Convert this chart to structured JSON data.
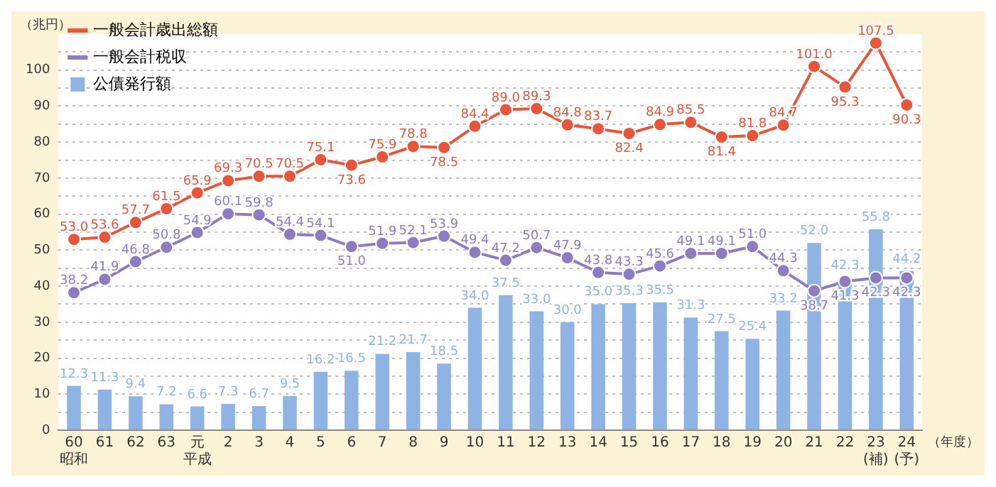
{
  "chart_data": {
    "type": "bar",
    "categories": [
      "60\n昭和",
      "61",
      "62",
      "63",
      "元平成",
      "2",
      "3",
      "4",
      "5",
      "6",
      "7",
      "8",
      "9",
      "10",
      "11",
      "12",
      "13",
      "14",
      "15",
      "16",
      "17",
      "18",
      "19",
      "20",
      "21",
      "22",
      "23\n(補)",
      "24\n(予)"
    ],
    "series": [
      {
        "name": "一般会計歳出総額",
        "type": "line",
        "color": "#e8553a",
        "values": [
          53.0,
          53.6,
          57.7,
          61.5,
          65.9,
          69.3,
          70.5,
          70.5,
          75.1,
          73.6,
          75.9,
          78.8,
          78.5,
          84.4,
          89.0,
          89.3,
          84.8,
          83.7,
          82.4,
          84.9,
          85.5,
          81.4,
          81.8,
          84.7,
          101.0,
          95.3,
          107.5,
          90.3
        ],
        "value_labels": [
          "53.0",
          "53.6",
          "57.7",
          "61.5",
          "65.9",
          "69.3",
          "70.5",
          "70.5",
          "75.1",
          "73.6",
          "75.9",
          "78.8",
          "78.5",
          "84.4",
          "89.0",
          "89.3",
          "84.8",
          "83.7",
          "82.4",
          "84.9",
          "85.5",
          "81.4",
          "81.8",
          "84.7",
          "101.0",
          "95.3",
          "107.5",
          "90.3"
        ]
      },
      {
        "name": "一般会計税収",
        "type": "line",
        "color": "#8e7cc3",
        "values": [
          38.2,
          41.9,
          46.8,
          50.8,
          54.9,
          60.1,
          59.8,
          54.4,
          54.1,
          51.0,
          51.9,
          52.1,
          53.9,
          49.4,
          47.2,
          50.7,
          47.9,
          43.8,
          43.3,
          45.6,
          49.1,
          49.1,
          51.0,
          44.3,
          38.7,
          41.3,
          42.3,
          42.3
        ],
        "value_labels": [
          "38.2",
          "41.9",
          "46.8",
          "50.8",
          "54.9",
          "60.1",
          "59.8",
          "54.4",
          "54.1",
          "51.0",
          "51.9",
          "52.1",
          "53.9",
          "49.4",
          "47.2",
          "50.7",
          "47.9",
          "43.8",
          "43.3",
          "45.6",
          "49.1",
          "49.1",
          "51.0",
          "44.3",
          "38.7",
          "41.3",
          "42.3",
          "42.3"
        ]
      },
      {
        "name": "公債発行額",
        "color": "#8fb4e3",
        "values": [
          12.3,
          11.3,
          9.4,
          7.2,
          6.6,
          7.3,
          6.7,
          9.5,
          16.2,
          16.5,
          21.2,
          21.7,
          18.5,
          34.0,
          37.5,
          33.0,
          30.0,
          35.0,
          35.3,
          35.5,
          31.3,
          27.5,
          25.4,
          33.2,
          52.0,
          42.3,
          55.8,
          44.2
        ],
        "value_labels": [
          "12.3",
          "11.3",
          "9.4",
          "7.2",
          "6.6",
          "7.3",
          "6.7",
          "9.5",
          "16.2",
          "16.5",
          "21.2",
          "21.7",
          "18.5",
          "34.0",
          "37.5",
          "33.0",
          "30.0",
          "35.0",
          "35.3",
          "35.5",
          "31.3",
          "27.5",
          "25.4",
          "33.2",
          "52.0",
          "42.3",
          "55.8",
          "44.2"
        ]
      }
    ],
    "ylabel": "（兆円）",
    "xlabel": "（年度）",
    "ylim": [
      0,
      110
    ],
    "yticks": [
      0,
      {
        "value": 5,
        "label": null
      },
      10,
      {
        "value": 15,
        "label": null
      },
      20,
      {
        "value": 25,
        "label": null
      },
      30,
      {
        "value": 35,
        "label": null
      },
      40,
      {
        "value": 45,
        "label": null
      },
      50,
      {
        "value": 55,
        "label": null
      },
      60,
      {
        "value": 65,
        "label": null
      },
      70,
      {
        "value": 75,
        "label": null
      },
      80,
      {
        "value": 85,
        "label": null
      },
      90,
      {
        "value": 95,
        "label": null
      },
      100,
      {
        "value": 105,
        "label": null
      }
    ],
    "grid": "y",
    "legend": "top left",
    "marker": "circle"
  }
}
